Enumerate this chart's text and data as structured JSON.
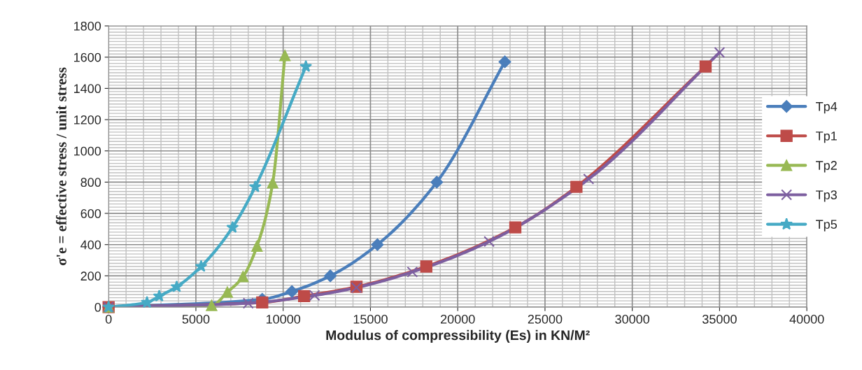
{
  "chart_data": {
    "type": "line",
    "xlabel": "Modulus of compressibility (Es) in KN/M²",
    "ylabel": "σ'e = effective stress / unit stress",
    "xlim": [
      0,
      40000
    ],
    "xticks": [
      0,
      5000,
      10000,
      15000,
      20000,
      25000,
      30000,
      35000,
      40000
    ],
    "ylim": [
      0,
      1800
    ],
    "yticks": [
      0,
      200,
      400,
      600,
      800,
      1000,
      1200,
      1400,
      1600,
      1800
    ],
    "grid": true,
    "legend": "right",
    "series": [
      {
        "name": "Tp4",
        "color": "#4a7ebb",
        "marker": "diamond",
        "x": [
          0,
          8800,
          10500,
          12700,
          15400,
          18800,
          22700
        ],
        "values": [
          0,
          50,
          100,
          200,
          400,
          800,
          1570
        ]
      },
      {
        "name": "Tp1",
        "color": "#be4b48",
        "marker": "square",
        "x": [
          0,
          8800,
          11200,
          14200,
          18200,
          23300,
          26800,
          34200
        ],
        "values": [
          0,
          30,
          70,
          130,
          260,
          510,
          770,
          1540
        ]
      },
      {
        "name": "Tp2",
        "color": "#98b954",
        "marker": "triangle",
        "x": [
          0,
          5900,
          6800,
          7700,
          8500,
          9400,
          10100
        ],
        "values": [
          0,
          10,
          95,
          195,
          390,
          795,
          1610
        ]
      },
      {
        "name": "Tp3",
        "color": "#7d5fa0",
        "marker": "cross",
        "x": [
          0,
          8000,
          11800,
          14200,
          17400,
          21800,
          27500,
          35000
        ],
        "values": [
          0,
          25,
          75,
          125,
          225,
          420,
          820,
          1630
        ]
      },
      {
        "name": "Tp5",
        "color": "#46aac5",
        "marker": "star",
        "x": [
          0,
          2200,
          2900,
          3900,
          5300,
          7100,
          8400,
          11300
        ],
        "values": [
          0,
          30,
          70,
          130,
          260,
          510,
          770,
          1540
        ]
      }
    ]
  }
}
